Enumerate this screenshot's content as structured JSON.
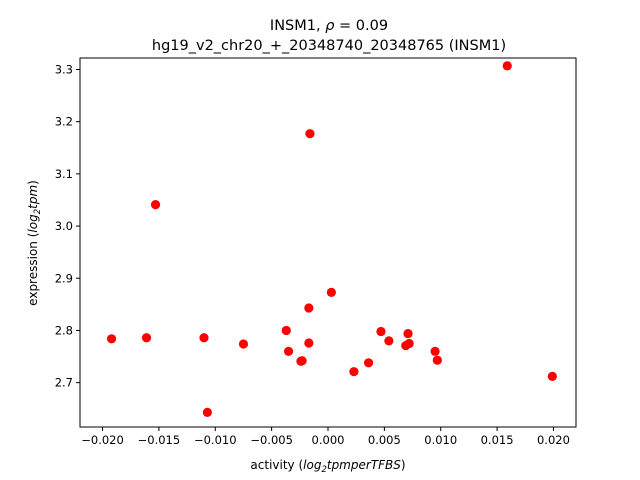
{
  "chart_data": {
    "type": "scatter",
    "title_name": "INSM1, ",
    "title_rho_symbol": "ρ",
    "title_rho_rest": " = 0.09",
    "subtitle": "hg19_v2_chr20_+_20348740_20348765 (INSM1)",
    "xlabel_prefix": "activity (",
    "xlabel_log": "log",
    "xlabel_sub": "2",
    "xlabel_rest": "tpmperTFBS",
    "xlabel_suffix": ")",
    "ylabel_prefix": "expression (",
    "ylabel_log": "log",
    "ylabel_sub": "2",
    "ylabel_rest": "tpm",
    "ylabel_suffix": ")",
    "xlim": [
      -0.022,
      0.022
    ],
    "ylim": [
      2.615,
      3.322
    ],
    "xticks": [
      -0.02,
      -0.015,
      -0.01,
      -0.005,
      0.0,
      0.005,
      0.01,
      0.015,
      0.02
    ],
    "xtick_labels": [
      "−0.020",
      "−0.015",
      "−0.010",
      "−0.005",
      "0.000",
      "0.005",
      "0.010",
      "0.015",
      "0.020"
    ],
    "yticks": [
      2.7,
      2.8,
      2.9,
      3.0,
      3.1,
      3.2,
      3.3
    ],
    "ytick_labels": [
      "2.7",
      "2.8",
      "2.9",
      "3.0",
      "3.1",
      "3.2",
      "3.3"
    ],
    "grid": false,
    "marker_color": "#ff0000",
    "points": [
      {
        "x": 0.0159,
        "y": 3.307
      },
      {
        "x": -0.0016,
        "y": 3.177
      },
      {
        "x": -0.0153,
        "y": 3.041
      },
      {
        "x": 0.0003,
        "y": 2.873
      },
      {
        "x": -0.0017,
        "y": 2.843
      },
      {
        "x": -0.0037,
        "y": 2.8
      },
      {
        "x": 0.0047,
        "y": 2.798
      },
      {
        "x": 0.0071,
        "y": 2.794
      },
      {
        "x": -0.0161,
        "y": 2.786
      },
      {
        "x": -0.011,
        "y": 2.786
      },
      {
        "x": -0.0192,
        "y": 2.784
      },
      {
        "x": 0.0054,
        "y": 2.78
      },
      {
        "x": -0.0017,
        "y": 2.776
      },
      {
        "x": 0.0072,
        "y": 2.775
      },
      {
        "x": -0.0075,
        "y": 2.774
      },
      {
        "x": 0.0069,
        "y": 2.771
      },
      {
        "x": -0.0035,
        "y": 2.76
      },
      {
        "x": 0.0095,
        "y": 2.76
      },
      {
        "x": 0.0097,
        "y": 2.743
      },
      {
        "x": -0.0023,
        "y": 2.742
      },
      {
        "x": -0.0024,
        "y": 2.741
      },
      {
        "x": 0.0036,
        "y": 2.738
      },
      {
        "x": 0.0023,
        "y": 2.721
      },
      {
        "x": 0.0199,
        "y": 2.712
      },
      {
        "x": -0.0107,
        "y": 2.643
      }
    ]
  }
}
